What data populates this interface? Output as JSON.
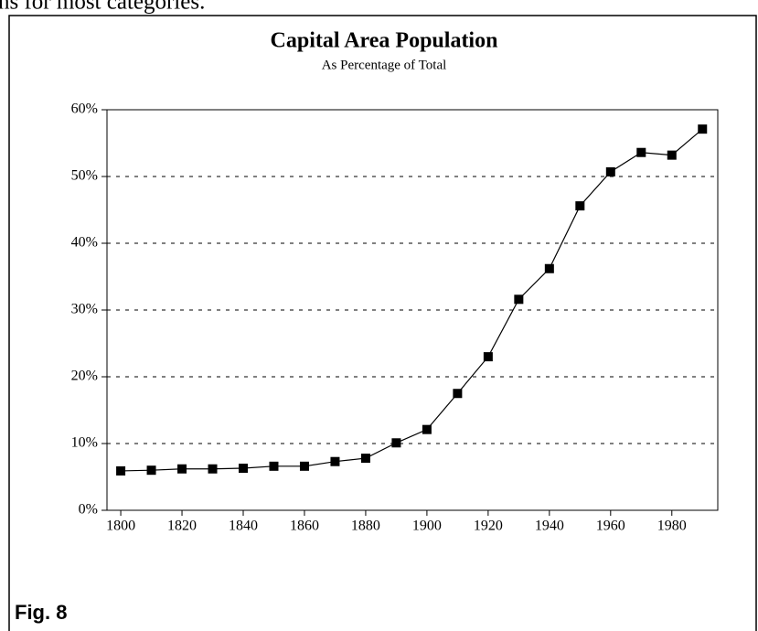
{
  "page_text": "ns for most categories.",
  "figure_label": "Fig. 8",
  "chart_data": {
    "type": "line",
    "title": "Capital Area Population",
    "subtitle": "As Percentage of Total",
    "x": [
      1800,
      1810,
      1820,
      1830,
      1840,
      1850,
      1860,
      1870,
      1880,
      1890,
      1900,
      1910,
      1920,
      1930,
      1940,
      1950,
      1960,
      1970,
      1980,
      1990
    ],
    "values": [
      5.9,
      6.0,
      6.2,
      6.2,
      6.3,
      6.6,
      6.6,
      7.3,
      7.8,
      10.1,
      12.1,
      17.5,
      23.0,
      31.6,
      36.2,
      45.6,
      50.7,
      53.6,
      53.2,
      57.1
    ],
    "color": "#000000",
    "xlim": [
      1795.5,
      1995
    ],
    "xticks": [
      1800,
      1820,
      1840,
      1860,
      1880,
      1900,
      1920,
      1940,
      1960,
      1980
    ],
    "ylim": [
      0,
      60
    ],
    "yticks": [
      {
        "value": 0,
        "label": "0%"
      },
      {
        "value": 10,
        "label": "10%"
      },
      {
        "value": 20,
        "label": "20%"
      },
      {
        "value": 30,
        "label": "30%"
      },
      {
        "value": 40,
        "label": "40%"
      },
      {
        "value": 50,
        "label": "50%"
      },
      {
        "value": 60,
        "label": "60%"
      }
    ],
    "grid": true
  }
}
